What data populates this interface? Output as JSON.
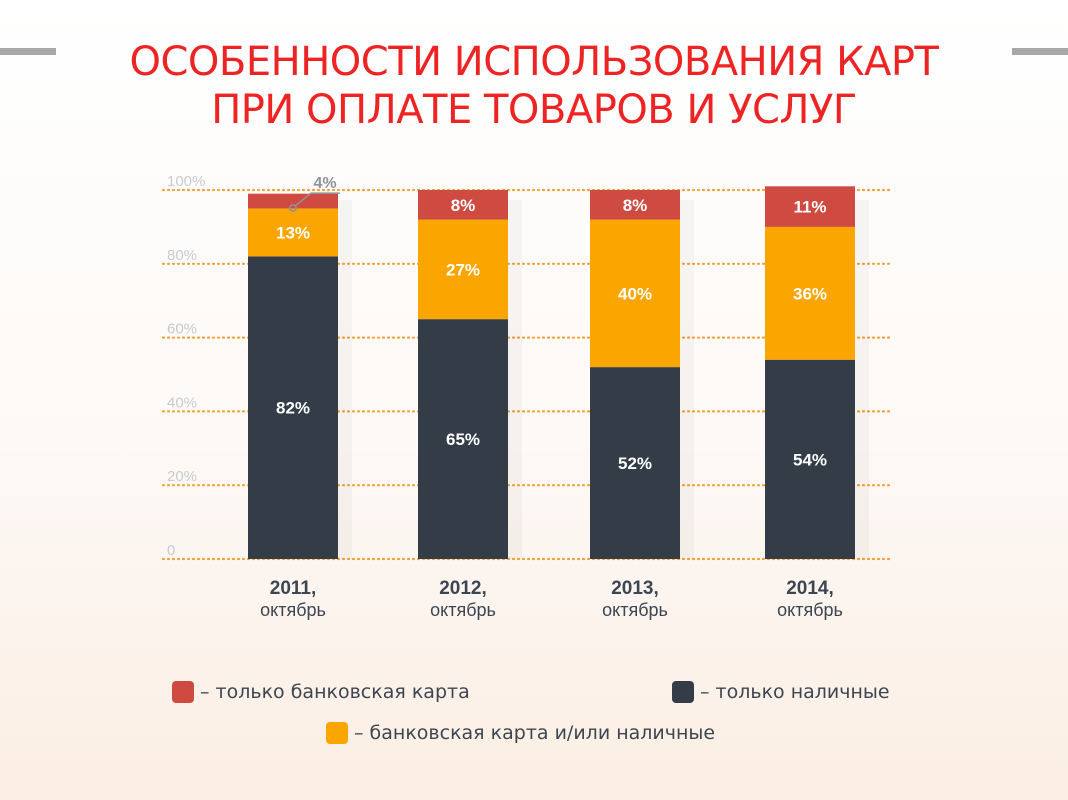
{
  "title": {
    "line1": "ОСОБЕННОСТИ ИСПОЛЬЗОВАНИЯ КАРТ",
    "line2": "ПРИ ОПЛАТЕ ТОВАРОВ И УСЛУГ"
  },
  "colors": {
    "card_only": "#cf4a40",
    "card_or_cash": "#fba500",
    "cash_only": "#343d47",
    "grid": "#f2a23a",
    "title": "#ee2424"
  },
  "chart_data": {
    "type": "bar",
    "stacked": true,
    "title": "ОСОБЕННОСТИ ИСПОЛЬЗОВАНИЯ КАРТ ПРИ ОПЛАТЕ ТОВАРОВ И УСЛУГ",
    "categories": [
      {
        "year": "2011,",
        "month": "октябрь"
      },
      {
        "year": "2012,",
        "month": "октябрь"
      },
      {
        "year": "2013,",
        "month": "октябрь"
      },
      {
        "year": "2014,",
        "month": "октябрь"
      }
    ],
    "series": [
      {
        "key": "cash_only",
        "name": "– только наличные",
        "color": "#343d47",
        "values": [
          82,
          65,
          52,
          54
        ],
        "labels": [
          "82%",
          "65%",
          "52%",
          "54%"
        ]
      },
      {
        "key": "card_or_cash",
        "name": "– банковская карта и/или наличные",
        "color": "#fba500",
        "values": [
          13,
          27,
          40,
          36
        ],
        "labels": [
          "13%",
          "27%",
          "40%",
          "36%"
        ]
      },
      {
        "key": "card_only",
        "name": "– только банковская карта",
        "color": "#cf4a40",
        "values": [
          4,
          8,
          8,
          11
        ],
        "labels": [
          "4%",
          "8%",
          "8%",
          "11%"
        ]
      }
    ],
    "yticks": [
      {
        "value": 0,
        "label": "0"
      },
      {
        "value": 20,
        "label": "20%"
      },
      {
        "value": 40,
        "label": "40%"
      },
      {
        "value": 60,
        "label": "60%"
      },
      {
        "value": 80,
        "label": "80%"
      },
      {
        "value": 100,
        "label": "100%"
      }
    ],
    "ylim": [
      0,
      100
    ],
    "grid": true,
    "grid_style": "dotted",
    "xlabel": "",
    "ylabel": "",
    "legend_position": "bottom"
  },
  "legend": {
    "card_only": "– только банковская карта",
    "cash_only": "– только наличные",
    "card_or_cash": "– банковская карта и/или наличные"
  }
}
